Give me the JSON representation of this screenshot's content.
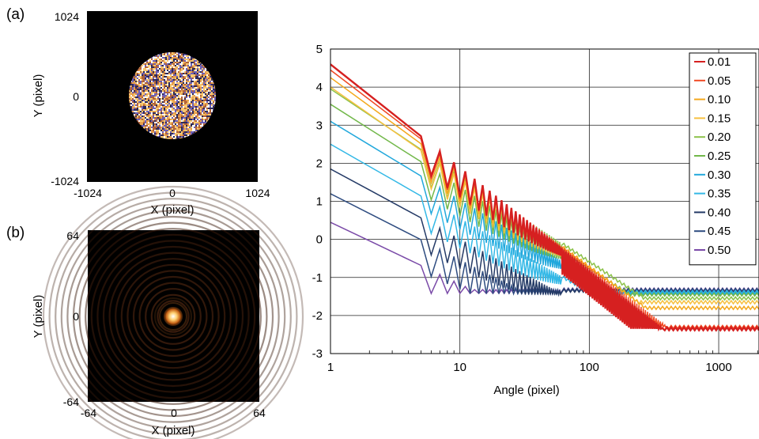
{
  "panel_a": {
    "label": "(a)",
    "xlabel": "X (pixel)",
    "ylabel": "Y (pixel)",
    "xticks": [
      "-1024",
      "0",
      "1024"
    ],
    "yticks": [
      "1024",
      "0",
      "-1024"
    ],
    "colors": {
      "background": "#000000",
      "speckle": [
        "#f7c870",
        "#6d5fb6",
        "#ffffff",
        "#b0623a",
        "#2d2a5a",
        "#e8a04c"
      ]
    }
  },
  "panel_b": {
    "label": "(b)",
    "xlabel": "X (pixel)",
    "ylabel": "Y (pixel)",
    "xticks": [
      "-64",
      "0",
      "64"
    ],
    "yticks": [
      "64",
      "0",
      "-64"
    ],
    "colors": {
      "background": "#000000",
      "ring": "#3a1c0c",
      "center": "#ffffff",
      "glow": "#ffb040"
    }
  },
  "chart_data": {
    "type": "line",
    "title": "",
    "xlabel": "Angle (pixel)",
    "ylabel": "",
    "xscale": "log",
    "xlim": [
      1,
      2048
    ],
    "ylim": [
      -3,
      5
    ],
    "xtick_labels": [
      "1",
      "10",
      "100",
      "1000"
    ],
    "ytick_labels": [
      "5",
      "4",
      "3",
      "2",
      "1",
      "0",
      "-1",
      "-2",
      "-3"
    ],
    "grid": true,
    "legend": "top-right",
    "series": [
      {
        "name": "0.01",
        "color": "#d62020",
        "start": 4.6,
        "floor": -2.35
      },
      {
        "name": "0.05",
        "color": "#f04a24",
        "start": 4.45,
        "floor": -2.3
      },
      {
        "name": "0.10",
        "color": "#f4a81c",
        "start": 4.25,
        "floor": -1.8
      },
      {
        "name": "0.15",
        "color": "#f6c040",
        "start": 4.0,
        "floor": -1.65
      },
      {
        "name": "0.20",
        "color": "#8cc24a",
        "start": 3.95,
        "floor": -1.55
      },
      {
        "name": "0.25",
        "color": "#72b84a",
        "start": 3.55,
        "floor": -1.45
      },
      {
        "name": "0.30",
        "color": "#22a8dc",
        "start": 3.1,
        "floor": -1.42
      },
      {
        "name": "0.35",
        "color": "#33b8e6",
        "start": 2.5,
        "floor": -1.38
      },
      {
        "name": "0.40",
        "color": "#243a66",
        "start": 1.85,
        "floor": -1.35
      },
      {
        "name": "0.45",
        "color": "#2e4c80",
        "start": 1.2,
        "floor": -1.33
      },
      {
        "name": "0.50",
        "color": "#7a4aa8",
        "start": 0.45,
        "floor": -1.32
      }
    ]
  }
}
